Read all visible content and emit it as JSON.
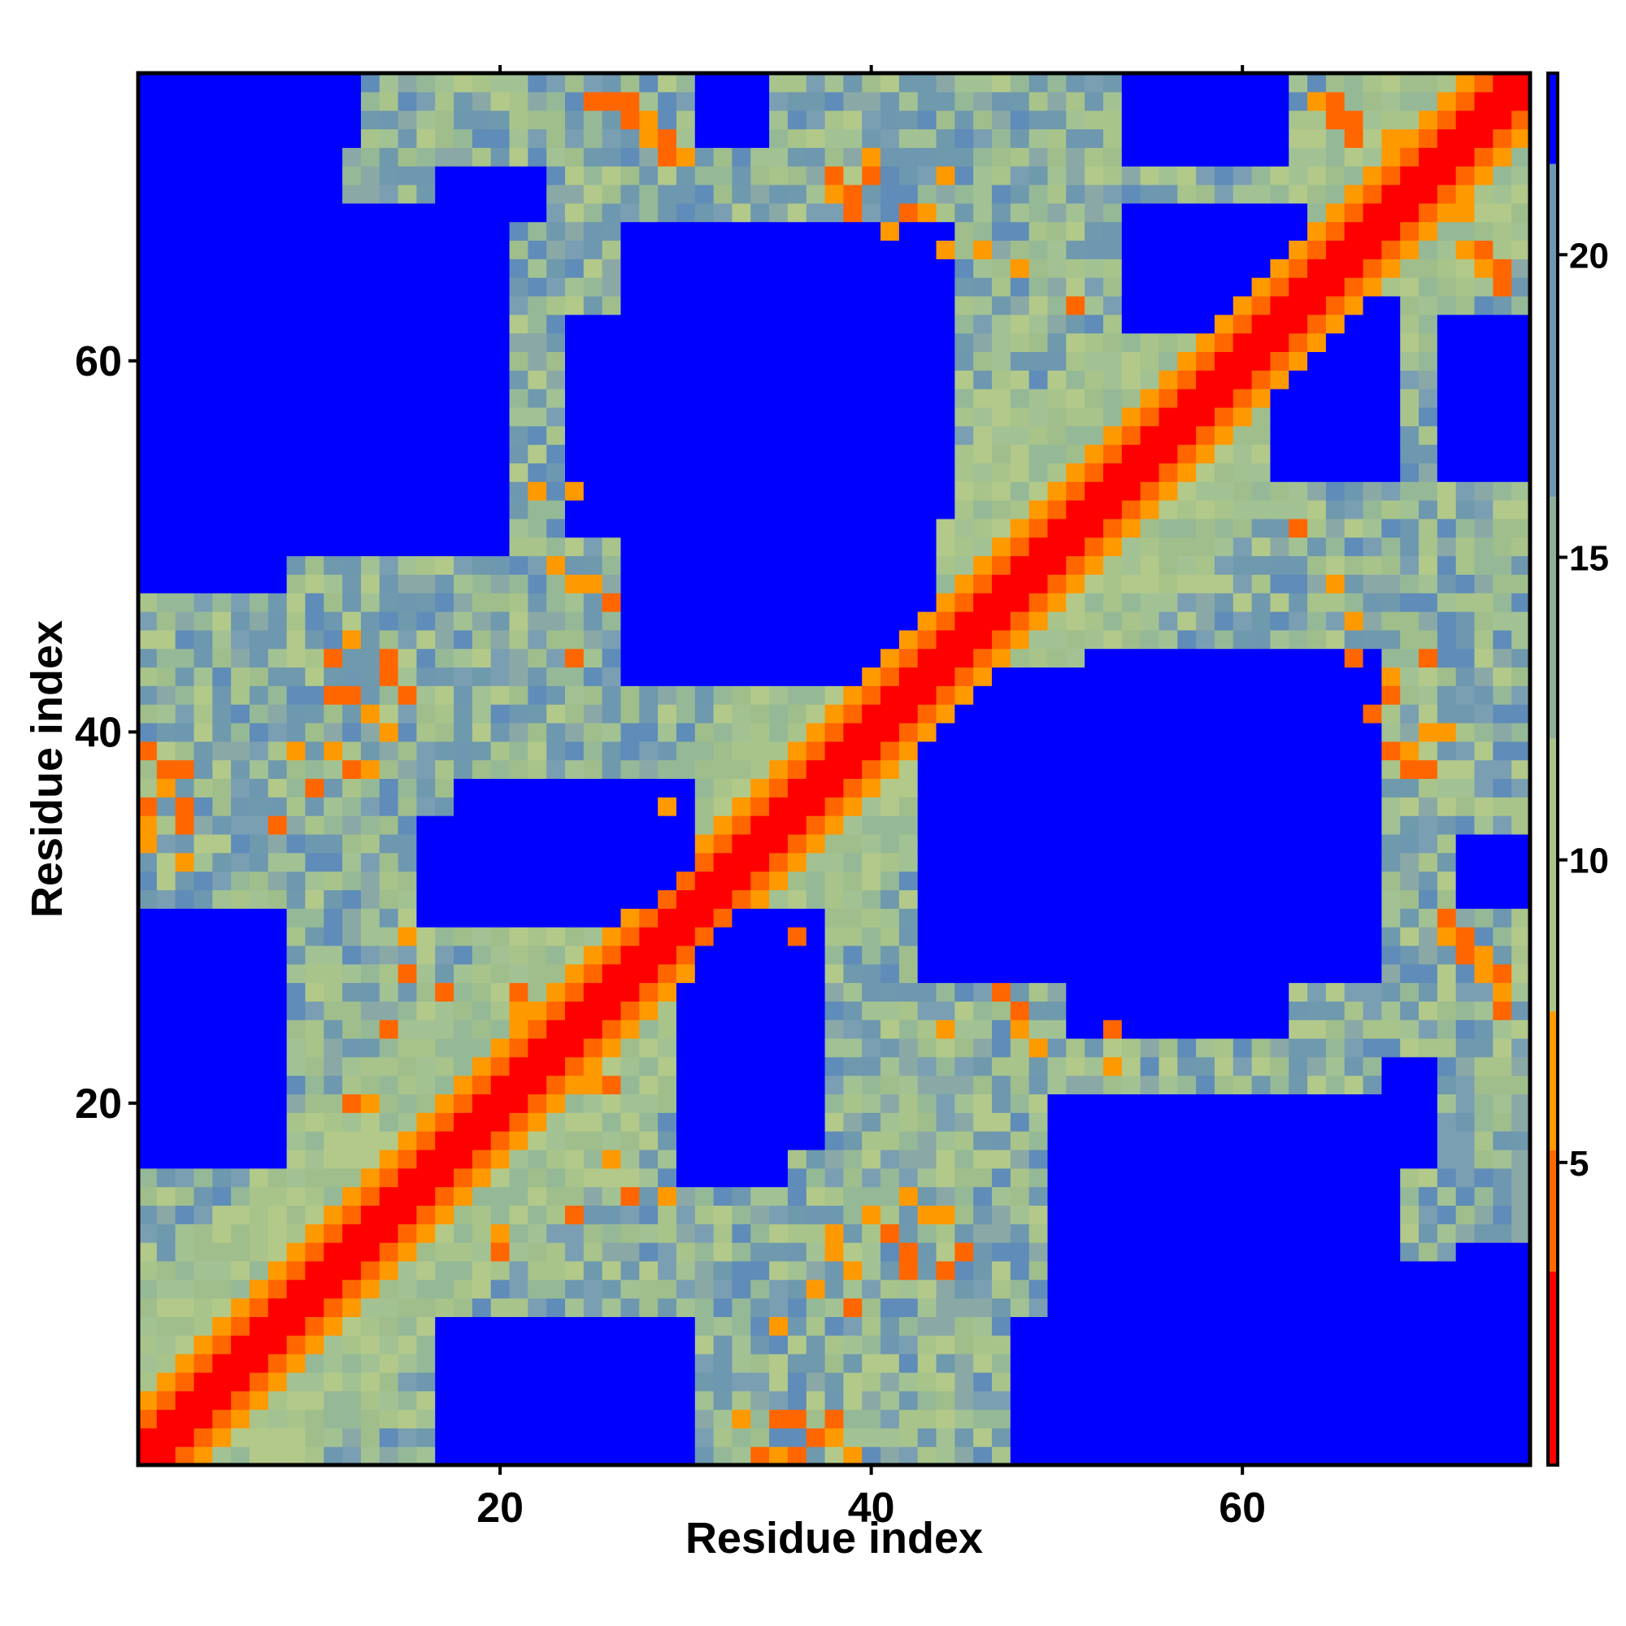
{
  "chart_data": {
    "type": "heatmap",
    "title": "",
    "xlabel": "Residue index",
    "ylabel": "Residue index",
    "n": 75,
    "xlim": [
      1,
      75
    ],
    "ylim": [
      1,
      75
    ],
    "x_ticks": [
      20,
      40,
      60
    ],
    "x_tick_labels": [
      "20",
      "40",
      "60"
    ],
    "y_ticks": [
      20,
      40,
      60
    ],
    "y_tick_labels": [
      "20",
      "40",
      "60"
    ],
    "colorbar": {
      "range": [
        0,
        23
      ],
      "ticks": [
        5,
        10,
        15,
        20
      ],
      "tick_labels": [
        "5",
        "10",
        "15",
        "20"
      ],
      "colors": [
        "#ff0000",
        "#ff6a00",
        "#ff9a00",
        "#a8c48a",
        "#6e97b0",
        "#0000ff"
      ]
    },
    "colors": {
      "diagonal": "#ff0000",
      "near_contact": "#ff6600",
      "mid_contact": "#ff9900",
      "green_mid": "#a8c48a",
      "slate": "#6e97b0",
      "far": "#0000ff"
    },
    "diagonal": {
      "break_residue": 30
    },
    "far_regions": [
      {
        "x": [
          1,
          20
        ],
        "y": [
          50,
          67
        ]
      },
      {
        "x": [
          27,
          44
        ],
        "y": [
          52,
          67
        ]
      },
      {
        "x": [
          27,
          42
        ],
        "y": [
          43,
          50
        ]
      },
      {
        "x": [
          47,
          64
        ],
        "y": [
          30,
          43
        ]
      },
      {
        "x": [
          51,
          62
        ],
        "y": [
          24,
          33
        ]
      },
      {
        "x": [
          53,
          68
        ],
        "y": [
          1,
          16
        ]
      },
      {
        "x": [
          48,
          56
        ],
        "y": [
          1,
          8
        ]
      },
      {
        "x": [
          66,
          75
        ],
        "y": [
          1,
          11
        ]
      },
      {
        "x": [
          71,
          75
        ],
        "y": [
          1,
          11
        ]
      },
      {
        "x": [
          18,
          30
        ],
        "y": [
          1,
          8
        ]
      },
      {
        "x": [
          18,
          30
        ],
        "y": [
          32,
          37
        ]
      },
      {
        "x": [
          1,
          8
        ],
        "y": [
          17,
          30
        ]
      },
      {
        "x": [
          30,
          35
        ],
        "y": [
          16,
          28
        ]
      },
      {
        "x": [
          62,
          68
        ],
        "y": [
          54,
          63
        ]
      },
      {
        "x": [
          54,
          62
        ],
        "y": [
          71,
          75
        ]
      },
      {
        "x": [
          31,
          34
        ],
        "y": [
          72,
          75
        ]
      },
      {
        "x": [
          4,
          12
        ],
        "y": [
          72,
          75
        ]
      },
      {
        "x": [
          68,
          70
        ],
        "y": [
          17,
          22
        ]
      }
    ],
    "orange_patches": [
      {
        "x": 25,
        "y": 74
      },
      {
        "x": 26,
        "y": 74
      },
      {
        "x": 27,
        "y": 73
      },
      {
        "x": 28,
        "y": 72
      },
      {
        "x": 29,
        "y": 71
      },
      {
        "x": 38,
        "y": 70
      },
      {
        "x": 39,
        "y": 69
      },
      {
        "x": 40,
        "y": 71
      },
      {
        "x": 42,
        "y": 68
      },
      {
        "x": 43,
        "y": 68
      },
      {
        "x": 44,
        "y": 66
      },
      {
        "x": 46,
        "y": 66
      },
      {
        "x": 64,
        "y": 74
      },
      {
        "x": 65,
        "y": 73
      },
      {
        "x": 66,
        "y": 72
      },
      {
        "x": 68,
        "y": 70
      },
      {
        "x": 71,
        "y": 68
      },
      {
        "x": 72,
        "y": 68
      },
      {
        "x": 73,
        "y": 66
      },
      {
        "x": 74,
        "y": 65
      },
      {
        "x": 1,
        "y": 39
      },
      {
        "x": 3,
        "y": 38
      },
      {
        "x": 1,
        "y": 36
      },
      {
        "x": 3,
        "y": 35
      },
      {
        "x": 12,
        "y": 42
      },
      {
        "x": 13,
        "y": 41
      },
      {
        "x": 14,
        "y": 43
      },
      {
        "x": 15,
        "y": 42
      },
      {
        "x": 12,
        "y": 38
      },
      {
        "x": 13,
        "y": 38
      },
      {
        "x": 17,
        "y": 26
      },
      {
        "x": 21,
        "y": 25
      },
      {
        "x": 22,
        "y": 24
      },
      {
        "x": 24,
        "y": 22
      },
      {
        "x": 25,
        "y": 21
      },
      {
        "x": 26,
        "y": 21
      },
      {
        "x": 40,
        "y": 14
      },
      {
        "x": 41,
        "y": 13
      },
      {
        "x": 39,
        "y": 11
      },
      {
        "x": 42,
        "y": 11
      },
      {
        "x": 37,
        "y": 10
      },
      {
        "x": 45,
        "y": 12
      },
      {
        "x": 33,
        "y": 3
      },
      {
        "x": 36,
        "y": 3
      },
      {
        "x": 37,
        "y": 2
      },
      {
        "x": 38,
        "y": 2
      },
      {
        "x": 34,
        "y": 1
      },
      {
        "x": 35,
        "y": 1
      },
      {
        "x": 48,
        "y": 24
      },
      {
        "x": 49,
        "y": 23
      },
      {
        "x": 53,
        "y": 22
      },
      {
        "x": 71,
        "y": 30
      },
      {
        "x": 72,
        "y": 29
      },
      {
        "x": 73,
        "y": 28
      },
      {
        "x": 74,
        "y": 27
      },
      {
        "x": 74,
        "y": 25
      },
      {
        "x": 68,
        "y": 39
      },
      {
        "x": 69,
        "y": 38
      },
      {
        "x": 70,
        "y": 40
      },
      {
        "x": 67,
        "y": 41
      },
      {
        "x": 70,
        "y": 44
      },
      {
        "x": 66,
        "y": 44
      },
      {
        "x": 63,
        "y": 51
      },
      {
        "x": 65,
        "y": 48
      },
      {
        "x": 24,
        "y": 53
      },
      {
        "x": 25,
        "y": 48
      },
      {
        "x": 26,
        "y": 47
      },
      {
        "x": 11,
        "y": 44
      },
      {
        "x": 14,
        "y": 44
      },
      {
        "x": 24,
        "y": 44
      },
      {
        "x": 9,
        "y": 39
      },
      {
        "x": 8,
        "y": 35
      },
      {
        "x": 29,
        "y": 36
      },
      {
        "x": 12,
        "y": 20
      },
      {
        "x": 13,
        "y": 20
      },
      {
        "x": 27,
        "y": 15
      },
      {
        "x": 29,
        "y": 15
      },
      {
        "x": 24,
        "y": 14
      }
    ]
  }
}
